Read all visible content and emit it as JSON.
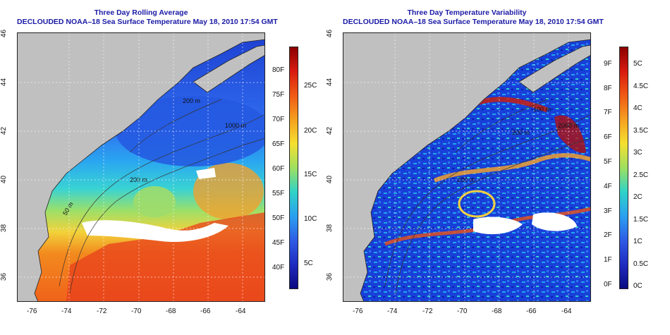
{
  "panels": [
    {
      "title1": "Three Day Rolling Average",
      "title2": "DECLOUDED NOAA–18 Sea Surface Temperature May 18, 2010 17:54 GMT",
      "colorbar_f": [
        "80F",
        "75F",
        "70F",
        "65F",
        "60F",
        "55F",
        "50F",
        "45F",
        "40F"
      ],
      "colorbar_c": [
        "25C",
        "20C",
        "15C",
        "10C",
        "5C"
      ],
      "contours": [
        "200 m",
        "1000 m",
        "200 m",
        "50 m"
      ]
    },
    {
      "title1": "Three Day Temperature Variability",
      "title2": "DECLOUDED NOAA–18 Sea Surface Temperature May 18, 2010 17:54 GMT",
      "colorbar_f": [
        "9F",
        "8F",
        "7F",
        "6F",
        "5F",
        "4F",
        "3F",
        "2F",
        "1F",
        "0F"
      ],
      "colorbar_c": [
        "5C",
        "4.5C",
        "4C",
        "3.5C",
        "3C",
        "2.5C",
        "2C",
        "1.5C",
        "1C",
        "0.5C",
        "0C"
      ],
      "contours": [
        "100 m",
        "2000 m",
        "200 m",
        "200 m"
      ]
    }
  ],
  "axes": {
    "lat_ticks": [
      "46",
      "44",
      "42",
      "40",
      "38",
      "36"
    ],
    "lon_ticks": [
      "-76",
      "-74",
      "-72",
      "-70",
      "-68",
      "-66",
      "-64"
    ]
  },
  "colors": {
    "land": "#c0c0c0",
    "coast": "#222222",
    "title": "#1a1aa6"
  }
}
